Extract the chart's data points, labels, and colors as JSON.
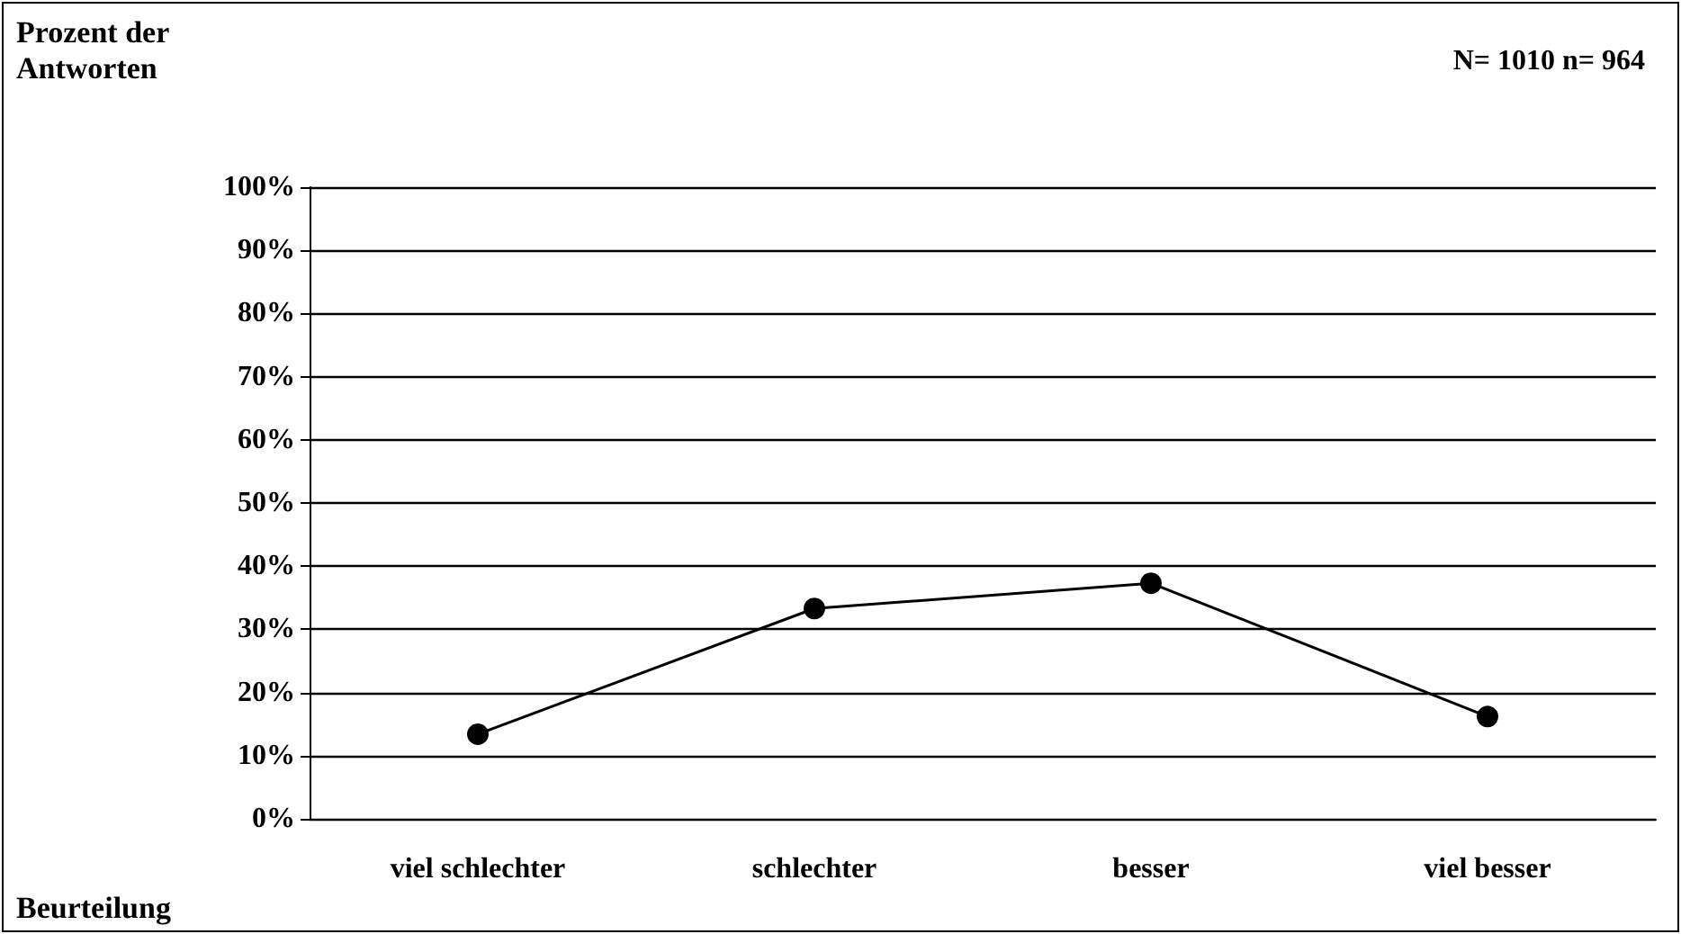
{
  "chart_data": {
    "type": "line",
    "ylabel": "Prozent der\nAntworten",
    "xlabel": "Beurteilung",
    "annotations": [
      "N= 1010 n= 964"
    ],
    "categories": [
      "viel schlechter",
      "schlechter",
      "besser",
      "viel besser"
    ],
    "series": [
      {
        "color": "#000000",
        "values": [
          13.4,
          33.3,
          37.3,
          16.2
        ]
      }
    ],
    "ylim": [
      0,
      100
    ],
    "yticks": [
      {
        "value": 0,
        "label": "0%"
      },
      {
        "value": 10,
        "label": "10%"
      },
      {
        "value": 20,
        "label": "20%"
      },
      {
        "value": 30,
        "label": "30%"
      },
      {
        "value": 40,
        "label": "40%"
      },
      {
        "value": 50,
        "label": "50%"
      },
      {
        "value": 60,
        "label": "60%"
      },
      {
        "value": 70,
        "label": "70%"
      },
      {
        "value": 80,
        "label": "80%"
      },
      {
        "value": 90,
        "label": "90%"
      },
      {
        "value": 100,
        "label": "100%"
      }
    ],
    "grid": "y",
    "marker": "circle",
    "line_style": "solid"
  }
}
